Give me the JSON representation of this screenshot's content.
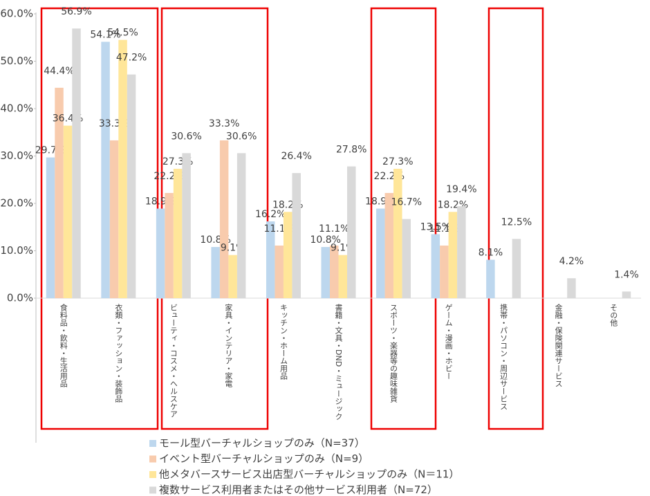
{
  "chart_data": {
    "type": "bar",
    "categories": [
      "食料品・飲料・生活用品",
      "衣類・ファッション・装飾品",
      "ビューティ・コスメ・ヘルスケア",
      "家具・インテリア・家電",
      "キッチン・ホーム用品",
      "書籍・文具・DND・ミュージック",
      "スポーツ・楽器等の趣味雑貨",
      "ゲーム・漫画・ホビー",
      "携帯・パソコン・周辺サービス",
      "金融・保険関連サービス",
      "その他"
    ],
    "series": [
      {
        "name": "モール型バーチャルショップのみ（N=37）",
        "color": "#bdd7ee",
        "values": [
          29.7,
          54.1,
          18.9,
          10.8,
          16.2,
          10.8,
          18.9,
          13.5,
          8.1,
          0,
          0
        ],
        "value_labels": [
          "29.7%",
          "54.1%",
          "18.9%",
          "10.8%",
          "16.2%",
          "10.8%",
          "18.9%",
          "13.5%",
          "8.1%",
          null,
          null
        ]
      },
      {
        "name": "イベント型バーチャルショップのみ（N=9）",
        "color": "#f8cbad",
        "values": [
          44.4,
          33.3,
          22.2,
          33.3,
          11.1,
          11.1,
          22.2,
          11.1,
          0,
          0,
          0
        ],
        "value_labels": [
          "44.4%",
          "33.3%",
          "22.2%",
          "33.3%",
          "11.1%",
          "11.1%",
          "22.2%",
          "11.1%",
          null,
          null,
          null
        ]
      },
      {
        "name": "他メタバースサービス出店型バーチャルショップのみ（N＝11）",
        "color": "#ffe699",
        "values": [
          36.4,
          54.5,
          27.3,
          9.1,
          18.2,
          9.1,
          27.3,
          18.2,
          0,
          0,
          0
        ],
        "value_labels": [
          "36.4%",
          "54.5%",
          "27.3%",
          "9.1%",
          "18.2%",
          "9.1%",
          "27.3%",
          "18.2%",
          null,
          null,
          null
        ]
      },
      {
        "name": "複数サービス利用者またはその他サービス利用者（N=72）",
        "color": "#d9d9d9",
        "values": [
          56.9,
          47.2,
          30.6,
          30.6,
          26.4,
          27.8,
          16.7,
          19.4,
          12.5,
          4.2,
          1.4
        ],
        "value_labels": [
          "56.9%",
          "47.2%",
          "30.6%",
          "30.6%",
          "26.4%",
          "27.8%",
          "16.7%",
          "19.4%",
          "12.5%",
          "4.2%",
          "1.4%"
        ]
      }
    ],
    "ylim": [
      0,
      60
    ],
    "yticks": [
      {
        "value": 0,
        "label": "0.0%"
      },
      {
        "value": 10,
        "label": "10.0%"
      },
      {
        "value": 20,
        "label": "20.0%"
      },
      {
        "value": 30,
        "label": "30.0%"
      },
      {
        "value": 40,
        "label": "40.0%"
      },
      {
        "value": 50,
        "label": "50.0%"
      },
      {
        "value": 60,
        "label": "60.0%"
      }
    ],
    "grid": false,
    "legend": "bottom"
  }
}
